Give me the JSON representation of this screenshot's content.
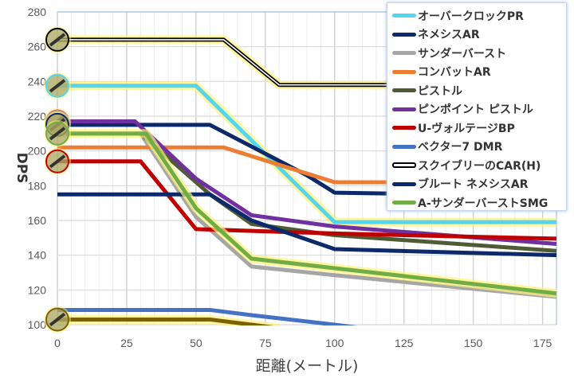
{
  "chart_data": {
    "type": "line",
    "title": "",
    "xlabel": "距離(メートル)",
    "ylabel": "DPS",
    "xlim": [
      0,
      180
    ],
    "ylim": [
      100,
      280
    ],
    "xticks": [
      0,
      25,
      50,
      75,
      100,
      125,
      150,
      175
    ],
    "yticks": [
      100,
      120,
      140,
      160,
      180,
      200,
      220,
      240,
      260,
      280
    ],
    "grid": true,
    "legend_position": "top-right",
    "series": [
      {
        "name": "オーバークロックPR",
        "color": "#55d6ee",
        "glow": true,
        "points": [
          [
            0,
            237.5
          ],
          [
            50,
            237.5
          ],
          [
            100,
            159
          ],
          [
            180,
            159
          ]
        ]
      },
      {
        "name": "ネメシスAR",
        "color": "#0c2a6a",
        "points": [
          [
            0,
            215
          ],
          [
            55,
            215
          ],
          [
            90,
            186
          ],
          [
            100,
            176
          ],
          [
            180,
            174
          ]
        ]
      },
      {
        "name": "サンダーバースト",
        "color": "#a6a6a6",
        "points": [
          [
            0,
            210
          ],
          [
            30,
            210
          ],
          [
            50,
            162
          ],
          [
            70,
            133.5
          ],
          [
            100,
            128.5
          ],
          [
            180,
            116
          ]
        ]
      },
      {
        "name": "コンバットAR",
        "color": "#ed7d31",
        "points": [
          [
            0,
            202
          ],
          [
            60,
            202
          ],
          [
            100,
            182
          ],
          [
            180,
            182
          ]
        ]
      },
      {
        "name": "ピストル",
        "color": "#4f5b35",
        "points": [
          [
            0,
            210
          ],
          [
            30,
            210
          ],
          [
            55,
            175
          ],
          [
            70,
            158
          ],
          [
            100,
            151.5
          ],
          [
            180,
            142.5
          ]
        ]
      },
      {
        "name": "ピンポイント ピストル",
        "color": "#7030a0",
        "points": [
          [
            0,
            217
          ],
          [
            28,
            217
          ],
          [
            50,
            184
          ],
          [
            70,
            163
          ],
          [
            100,
            156.5
          ],
          [
            180,
            146.5
          ]
        ]
      },
      {
        "name": "U-ヴォルテージBP",
        "color": "#c00000",
        "points": [
          [
            0,
            194
          ],
          [
            30,
            194
          ],
          [
            50,
            155
          ],
          [
            70,
            154
          ],
          [
            100,
            152.5
          ],
          [
            180,
            149.5
          ]
        ]
      },
      {
        "name": "ベクター7 DMR",
        "color": "#4472c4",
        "points": [
          [
            0,
            108.5
          ],
          [
            55,
            108.5
          ],
          [
            70,
            105.5
          ],
          [
            100,
            100
          ],
          [
            110,
            98
          ]
        ]
      },
      {
        "name": "スクイブリーのCAR(H)",
        "color": "#000000",
        "double": true,
        "glow": true,
        "points": [
          [
            0,
            264
          ],
          [
            60,
            264
          ],
          [
            80,
            238
          ],
          [
            180,
            238
          ]
        ]
      },
      {
        "name": "ブルート ネメシスAR",
        "color": "#0c2a6a",
        "points": [
          [
            0,
            175
          ],
          [
            55,
            175
          ],
          [
            70,
            160
          ],
          [
            100,
            143.5
          ],
          [
            180,
            140
          ]
        ]
      },
      {
        "name": "A-サンダーバーストSMG",
        "color": "#70ad47",
        "glow": true,
        "points": [
          [
            0,
            210
          ],
          [
            32,
            210
          ],
          [
            50,
            167
          ],
          [
            70,
            138
          ],
          [
            100,
            132.5
          ],
          [
            180,
            118
          ]
        ]
      },
      {
        "name": null,
        "color": "#7f6000",
        "glow": true,
        "points": [
          [
            0,
            103
          ],
          [
            55,
            103
          ],
          [
            70,
            100
          ],
          [
            80,
            98
          ]
        ]
      }
    ],
    "markers": [
      {
        "y": 264,
        "color": "#000000"
      },
      {
        "y": 237.5,
        "color": "#55d6ee"
      },
      {
        "y": 217,
        "color": "#c98080"
      },
      {
        "y": 215,
        "color": "#0c2a6a"
      },
      {
        "y": 210,
        "color": "#70ad47"
      },
      {
        "y": 194,
        "color": "#c00000"
      },
      {
        "y": 103,
        "color": "#7f6000"
      }
    ]
  }
}
